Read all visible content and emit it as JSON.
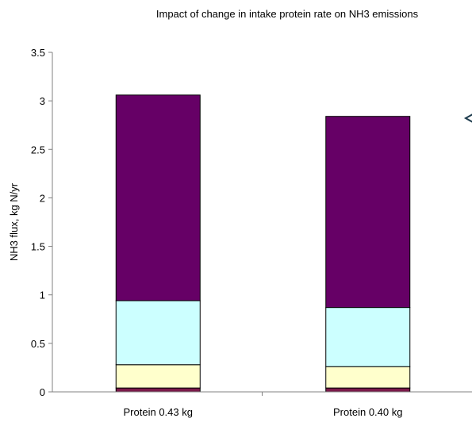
{
  "chart_data": {
    "type": "bar",
    "stacked": true,
    "title": "Impact of change in intake protein rate on NH3 emissions",
    "xlabel": "",
    "ylabel": "NH3 flux, kg N/yr",
    "ylim": [
      0,
      3.5
    ],
    "yticks": [
      "0",
      "0.5",
      "1",
      "1.5",
      "2",
      "2.5",
      "3",
      "3.5"
    ],
    "grid": false,
    "categories": [
      "Protein 0.43 kg",
      "Protein 0.40 kg"
    ],
    "series": [
      {
        "color": "#7a1a4a",
        "values": [
          0.04,
          0.04
        ]
      },
      {
        "color": "#ffffcc",
        "values": [
          0.24,
          0.22
        ]
      },
      {
        "color": "#ccffff",
        "values": [
          0.66,
          0.61
        ]
      },
      {
        "color": "#660066",
        "values": [
          2.12,
          1.97
        ]
      }
    ]
  }
}
